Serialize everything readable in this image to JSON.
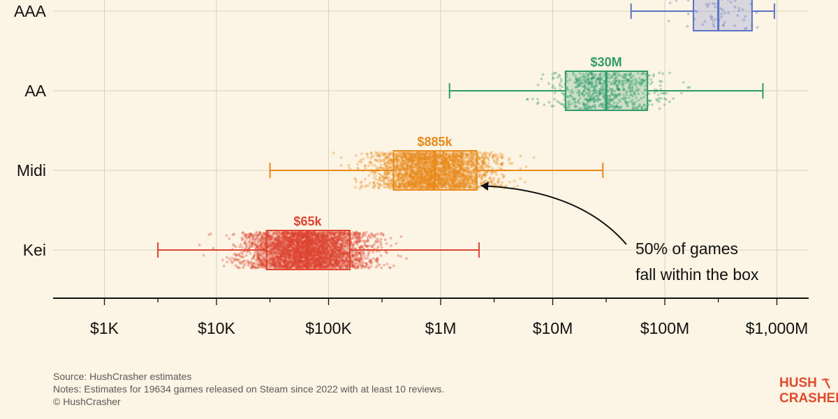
{
  "chart_data": {
    "type": "boxplot",
    "x_scale": "log",
    "x_ticks": [
      1000,
      10000,
      100000,
      1000000,
      10000000,
      100000000,
      1000000000
    ],
    "x_tick_labels": [
      "$1K",
      "$10K",
      "$100K",
      "$1M",
      "$10M",
      "$100M",
      "$1,000M"
    ],
    "xlim": [
      500,
      1300000000
    ],
    "grid": true,
    "categories": [
      "AAA",
      "AA",
      "Midi",
      "Kei"
    ],
    "series": [
      {
        "name": "AAA",
        "color": "#5b73c9",
        "whisker_low": 50000000,
        "q1": 180000000,
        "median": 300000000,
        "q3": 600000000,
        "whisker_high": 950000000,
        "median_label": "",
        "point_count": 60
      },
      {
        "name": "AA",
        "color": "#2f9b6a",
        "whisker_low": 1200000,
        "q1": 13000000,
        "median": 30000000,
        "q3": 70000000,
        "whisker_high": 750000000,
        "median_label": "$30M",
        "point_count": 650
      },
      {
        "name": "Midi",
        "color": "#e88a1a",
        "whisker_low": 30000,
        "q1": 380000,
        "median": 885000,
        "q3": 2100000,
        "whisker_high": 28000000,
        "median_label": "$885k",
        "point_count": 2400
      },
      {
        "name": "Kei",
        "color": "#de4432",
        "whisker_low": 3000,
        "q1": 28000,
        "median": 65000,
        "q3": 155000,
        "whisker_high": 2200000,
        "median_label": "$65k",
        "point_count": 3400
      }
    ],
    "annotation": {
      "lines": [
        "50% of games",
        "fall within the box"
      ]
    }
  },
  "footer": {
    "source": "Source: HushCrasher estimates",
    "notes": "Notes: Estimates for 19634 games released on Steam since 2022 with at least 10 reviews.",
    "copyright": "© HushCrasher"
  },
  "logo": {
    "line1": "HUSH",
    "line2": "CRASHER",
    "icon": "pickaxe-icon"
  }
}
